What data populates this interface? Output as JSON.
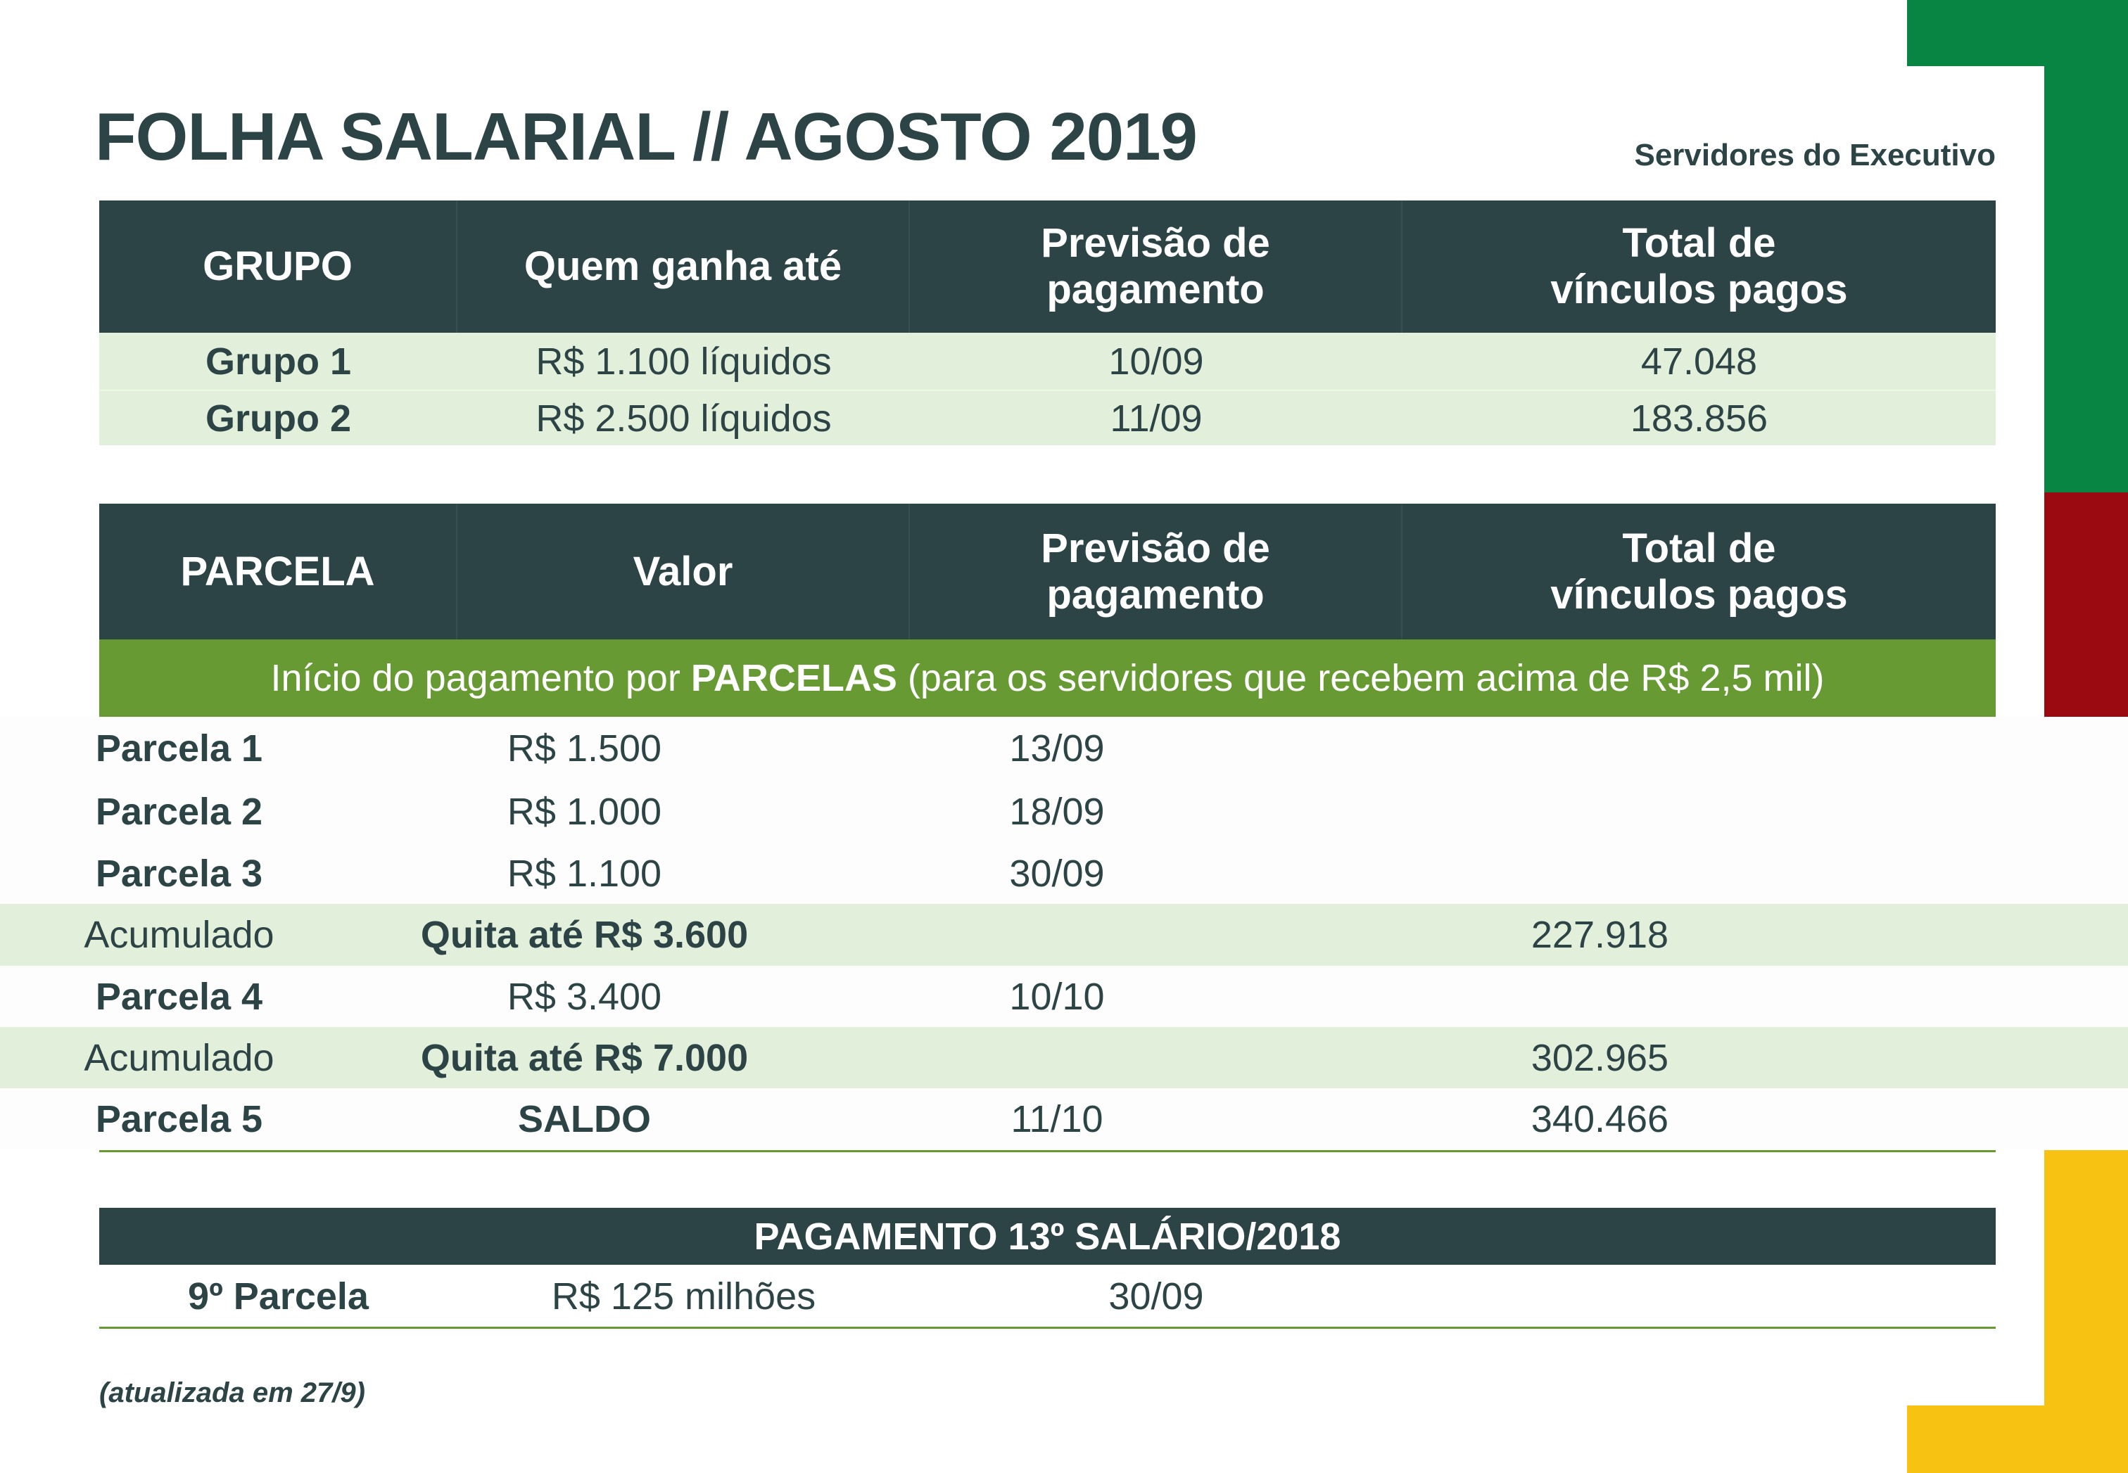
{
  "title": "FOLHA SALARIAL // AGOSTO 2019",
  "subtitle": "Servidores do Executivo",
  "colors": {
    "dark": "#2d4446",
    "light_green": "#e2efda",
    "band_green": "#689a34",
    "flag_green": "#088543",
    "flag_red": "#9b0a10",
    "flag_yellow": "#f8c213"
  },
  "table1": {
    "headers": [
      "GRUPO",
      "Quem ganha até",
      "Previsão de pagamento",
      "Total de vínculos pagos"
    ],
    "header_lines": {
      "h3a": "Previsão de",
      "h3b": "pagamento",
      "h4a": "Total de",
      "h4b": "vínculos pagos"
    },
    "rows": [
      {
        "grupo": "Grupo 1",
        "ganha": "R$ 1.100 líquidos",
        "previsao": "10/09",
        "total": "47.048"
      },
      {
        "grupo": "Grupo 2",
        "ganha": "R$ 2.500 líquidos",
        "previsao": "11/09",
        "total": "183.856"
      }
    ]
  },
  "table2": {
    "headers": [
      "PARCELA",
      "Valor",
      "Previsão de pagamento",
      "Total de vínculos pagos"
    ],
    "header_lines": {
      "h3a": "Previsão de",
      "h3b": "pagamento",
      "h4a": "Total de",
      "h4b": "vínculos pagos"
    },
    "band": {
      "pre": "Início do pagamento por ",
      "bold": "PARCELAS",
      "post": " (para os servidores que recebem acima de R$ 2,5 mil)"
    },
    "rows": [
      {
        "parcela": "Parcela 1",
        "valor": "R$ 1.500",
        "previsao": "13/09",
        "total": ""
      },
      {
        "parcela": "Parcela 2",
        "valor": "R$ 1.000",
        "previsao": "18/09",
        "total": ""
      },
      {
        "parcela": "Parcela 3",
        "valor": "R$ 1.100",
        "previsao": "30/09",
        "total": ""
      },
      {
        "parcela": "Acumulado",
        "valor": "Quita até R$ 3.600",
        "previsao": "",
        "total": "227.918"
      },
      {
        "parcela": "Parcela 4",
        "valor": "R$ 3.400",
        "previsao": "10/10",
        "total": ""
      },
      {
        "parcela": "Acumulado",
        "valor": "Quita até R$ 7.000",
        "previsao": "",
        "total": "302.965"
      },
      {
        "parcela": "Parcela 5",
        "valor": "SALDO",
        "previsao": "11/10",
        "total": "340.466"
      }
    ]
  },
  "table3": {
    "header": "PAGAMENTO 13º SALÁRIO/2018",
    "row": {
      "parcela": "9º Parcela",
      "valor": "R$ 125 milhões",
      "previsao": "30/09"
    }
  },
  "footnote": "(atualizada em 27/9)"
}
